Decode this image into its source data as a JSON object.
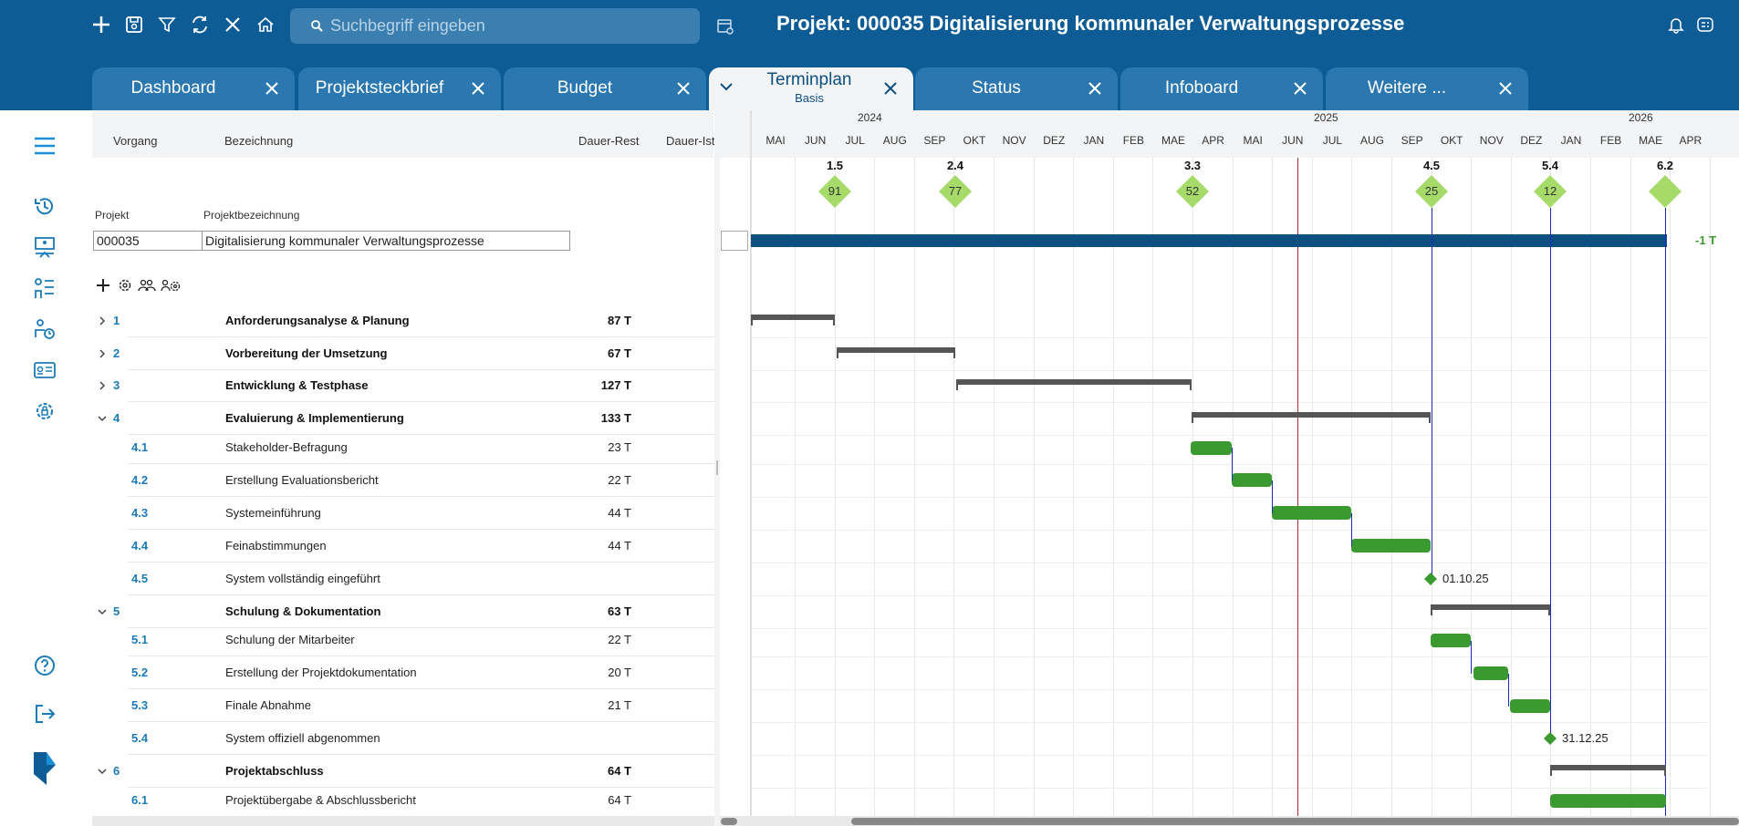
{
  "header": {
    "search_placeholder": "Suchbegriff eingeben",
    "title": "Projekt: 000035 Digitalisierung kommunaler Verwaltungsprozesse"
  },
  "tabs": [
    {
      "label": "Dashboard"
    },
    {
      "label": "Projektsteckbrief"
    },
    {
      "label": "Budget"
    },
    {
      "label": "Terminplan",
      "sub": "Basis",
      "active": true
    },
    {
      "label": "Status"
    },
    {
      "label": "Infoboard"
    },
    {
      "label": "Weitere ..."
    }
  ],
  "table": {
    "columns": {
      "vorgang": "Vorgang",
      "bezeichnung": "Bezeichnung",
      "dauer_rest": "Dauer-Rest",
      "dauer_ist": "Dauer-Ist"
    },
    "project_label": "Projekt",
    "project_name_label": "Projektbezeichnung",
    "project_id": "000035",
    "project_name": "Digitalisierung kommunaler Verwaltungsprozesse",
    "rows": [
      {
        "id": "1",
        "name": "Anforderungsanalyse & Planung",
        "dauer": "87 T",
        "level": 1,
        "expand": "collapsed"
      },
      {
        "id": "2",
        "name": "Vorbereitung der Umsetzung",
        "dauer": "67 T",
        "level": 1,
        "expand": "collapsed"
      },
      {
        "id": "3",
        "name": "Entwicklung & Testphase",
        "dauer": "127 T",
        "level": 1,
        "expand": "collapsed"
      },
      {
        "id": "4",
        "name": "Evaluierung & Implementierung",
        "dauer": "133 T",
        "level": 1,
        "expand": "expanded"
      },
      {
        "id": "4.1",
        "name": "Stakeholder-Befragung",
        "dauer": "23 T",
        "level": 2
      },
      {
        "id": "4.2",
        "name": "Erstellung Evaluationsbericht",
        "dauer": "22 T",
        "level": 2
      },
      {
        "id": "4.3",
        "name": "Systemeinführung",
        "dauer": "44 T",
        "level": 2
      },
      {
        "id": "4.4",
        "name": "Feinabstimmungen",
        "dauer": "44 T",
        "level": 2
      },
      {
        "id": "4.5",
        "name": "System vollständig eingeführt",
        "dauer": "",
        "level": 2
      },
      {
        "id": "5",
        "name": "Schulung & Dokumentation",
        "dauer": "63 T",
        "level": 1,
        "expand": "expanded"
      },
      {
        "id": "5.1",
        "name": "Schulung der Mitarbeiter",
        "dauer": "22 T",
        "level": 2
      },
      {
        "id": "5.2",
        "name": "Erstellung der Projektdokumentation",
        "dauer": "20 T",
        "level": 2
      },
      {
        "id": "5.3",
        "name": "Finale Abnahme",
        "dauer": "21 T",
        "level": 2
      },
      {
        "id": "5.4",
        "name": "System offiziell abgenommen",
        "dauer": "",
        "level": 2
      },
      {
        "id": "6",
        "name": "Projektabschluss",
        "dauer": "64 T",
        "level": 1,
        "expand": "expanded"
      },
      {
        "id": "6.1",
        "name": "Projektübergabe & Abschlussbericht",
        "dauer": "64 T",
        "level": 2
      }
    ]
  },
  "gantt": {
    "years": [
      "2024",
      "2025",
      "2026"
    ],
    "months": [
      "MAI",
      "JUN",
      "JUL",
      "AUG",
      "SEP",
      "OKT",
      "NOV",
      "DEZ",
      "JAN",
      "FEB",
      "MAE",
      "APR",
      "MAI",
      "JUN",
      "JUL",
      "AUG",
      "SEP",
      "OKT",
      "NOV",
      "DEZ",
      "JAN",
      "FEB",
      "MAE",
      "APR"
    ],
    "milestones": [
      {
        "label": "1.5",
        "value": "91"
      },
      {
        "label": "2.4",
        "value": "77"
      },
      {
        "label": "3.3",
        "value": "52"
      },
      {
        "label": "4.5",
        "value": "25"
      },
      {
        "label": "5.4",
        "value": "12"
      },
      {
        "label": "6.2",
        "value": ""
      }
    ],
    "deviation": "-1 T",
    "milestone_dates": {
      "m45": "01.10.25",
      "m54": "31.12.25"
    },
    "colors": {
      "project_bar": "#0d4f80",
      "task_bar": "#3b9a2f",
      "milestone": "#a6db6a",
      "today_line": "#a83232"
    }
  }
}
